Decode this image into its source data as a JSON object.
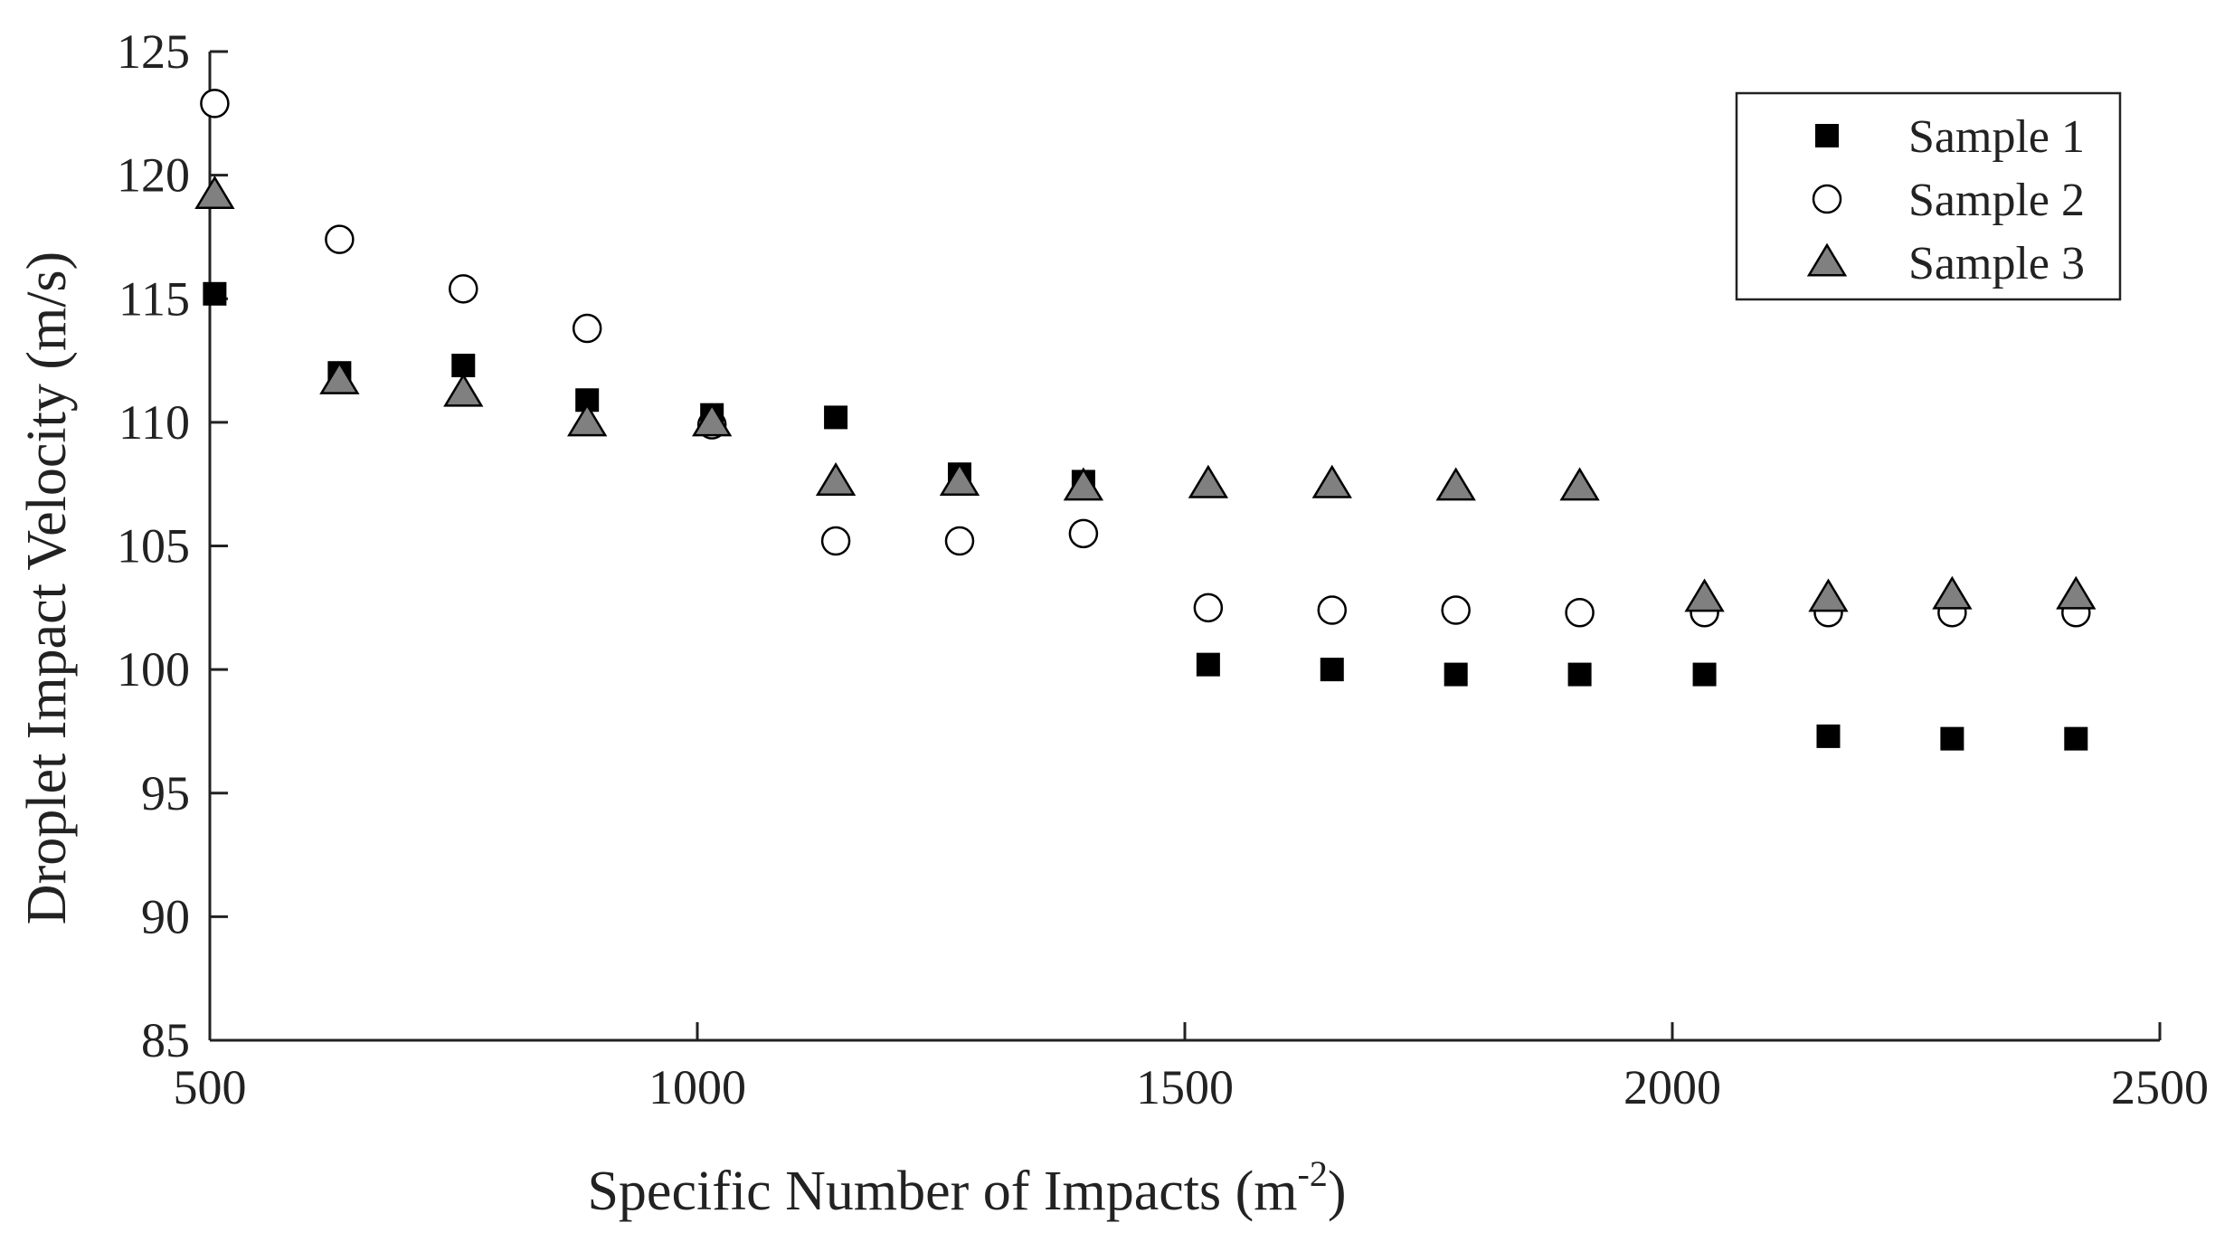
{
  "chart_data": {
    "type": "scatter",
    "title": "",
    "xlabel": "Specific Number of Impacts (m",
    "xlabel_superscript": "-2",
    "xlabel_suffix": ")",
    "ylabel": "Droplet Impact Velocity (m/s)",
    "xlim": [
      500,
      2500
    ],
    "ylim": [
      85,
      125
    ],
    "xticks": [
      500,
      1000,
      1500,
      2000,
      2500
    ],
    "yticks": [
      85,
      90,
      95,
      100,
      105,
      110,
      115,
      120,
      125
    ],
    "grid": false,
    "legend_position": "top-right",
    "series": [
      {
        "name": "Sample 1",
        "marker": "square",
        "color": "#000000",
        "points": [
          [
            505,
            115.2
          ],
          [
            633,
            112.0
          ],
          [
            760,
            112.3
          ],
          [
            887,
            110.9
          ],
          [
            1015,
            110.3
          ],
          [
            1142,
            110.2
          ],
          [
            1269,
            107.9
          ],
          [
            1396,
            107.6
          ],
          [
            1524,
            100.2
          ],
          [
            1651,
            100.0
          ],
          [
            1778,
            99.8
          ],
          [
            1905,
            99.8
          ],
          [
            2033,
            99.8
          ],
          [
            2160,
            97.3
          ],
          [
            2287,
            97.2
          ],
          [
            2414,
            97.2
          ]
        ]
      },
      {
        "name": "Sample 2",
        "marker": "circle",
        "color": "#ffffff",
        "points": [
          [
            505,
            122.9
          ],
          [
            633,
            117.4
          ],
          [
            760,
            115.4
          ],
          [
            887,
            113.8
          ],
          [
            1015,
            109.9
          ],
          [
            1142,
            105.2
          ],
          [
            1269,
            105.2
          ],
          [
            1396,
            105.5
          ],
          [
            1524,
            102.5
          ],
          [
            1651,
            102.4
          ],
          [
            1778,
            102.4
          ],
          [
            1905,
            102.3
          ],
          [
            2033,
            102.3
          ],
          [
            2160,
            102.3
          ],
          [
            2287,
            102.3
          ],
          [
            2414,
            102.3
          ]
        ]
      },
      {
        "name": "Sample 3",
        "marker": "triangle",
        "color": "#808080",
        "points": [
          [
            505,
            119.2
          ],
          [
            633,
            111.7
          ],
          [
            760,
            111.2
          ],
          [
            887,
            110.0
          ],
          [
            1015,
            110.0
          ],
          [
            1142,
            107.6
          ],
          [
            1269,
            107.6
          ],
          [
            1396,
            107.4
          ],
          [
            1524,
            107.5
          ],
          [
            1651,
            107.5
          ],
          [
            1778,
            107.4
          ],
          [
            1905,
            107.4
          ],
          [
            2033,
            102.9
          ],
          [
            2160,
            102.9
          ],
          [
            2287,
            103.0
          ],
          [
            2414,
            103.0
          ]
        ]
      }
    ]
  }
}
